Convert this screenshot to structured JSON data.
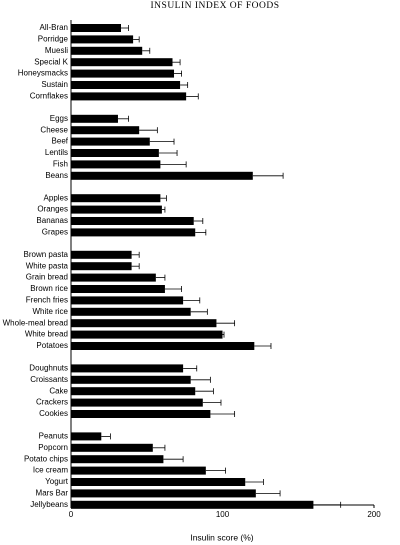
{
  "chart_data": {
    "type": "bar",
    "orientation": "horizontal",
    "title": "INSULIN INDEX OF FOODS",
    "x_label": "Insulin score (%)",
    "color": "#000000",
    "xlim": [
      0,
      200
    ],
    "xticks": [
      0,
      100,
      200
    ],
    "groups": [
      {
        "categories": [
          "All-Bran",
          "Porridge",
          "Muesli",
          "Special K",
          "Honeysmacks",
          "Sustain",
          "Cornflakes"
        ],
        "values": [
          33,
          41,
          47,
          67,
          68,
          72,
          76
        ],
        "errors": [
          5,
          4,
          5,
          5,
          5,
          5,
          8
        ]
      },
      {
        "categories": [
          "Eggs",
          "Cheese",
          "Beef",
          "Lentils",
          "Fish",
          "Beans"
        ],
        "values": [
          31,
          45,
          52,
          58,
          59,
          120
        ],
        "errors": [
          7,
          12,
          16,
          12,
          17,
          20
        ]
      },
      {
        "categories": [
          "Apples",
          "Oranges",
          "Bananas",
          "Grapes"
        ],
        "values": [
          59,
          60,
          81,
          82
        ],
        "errors": [
          4,
          2,
          6,
          7
        ]
      },
      {
        "categories": [
          "Brown pasta",
          "White pasta",
          "Grain bread",
          "Brown rice",
          "French fries",
          "White rice",
          "Whole-meal bread",
          "White bread",
          "Potatoes"
        ],
        "values": [
          40,
          40,
          56,
          62,
          74,
          79,
          96,
          100,
          121
        ],
        "errors": [
          5,
          5,
          6,
          11,
          11,
          11,
          12,
          1,
          11
        ]
      },
      {
        "categories": [
          "Doughnuts",
          "Croissants",
          "Cake",
          "Crackers",
          "Cookies"
        ],
        "values": [
          74,
          79,
          82,
          87,
          92
        ],
        "errors": [
          9,
          13,
          12,
          12,
          16
        ]
      },
      {
        "categories": [
          "Peanuts",
          "Popcorn",
          "Potato chips",
          "Ice cream",
          "Yogurt",
          "Mars Bar",
          "Jellybeans"
        ],
        "values": [
          20,
          54,
          61,
          89,
          115,
          122,
          160
        ],
        "errors": [
          6,
          8,
          13,
          13,
          12,
          16,
          18
        ]
      }
    ]
  }
}
